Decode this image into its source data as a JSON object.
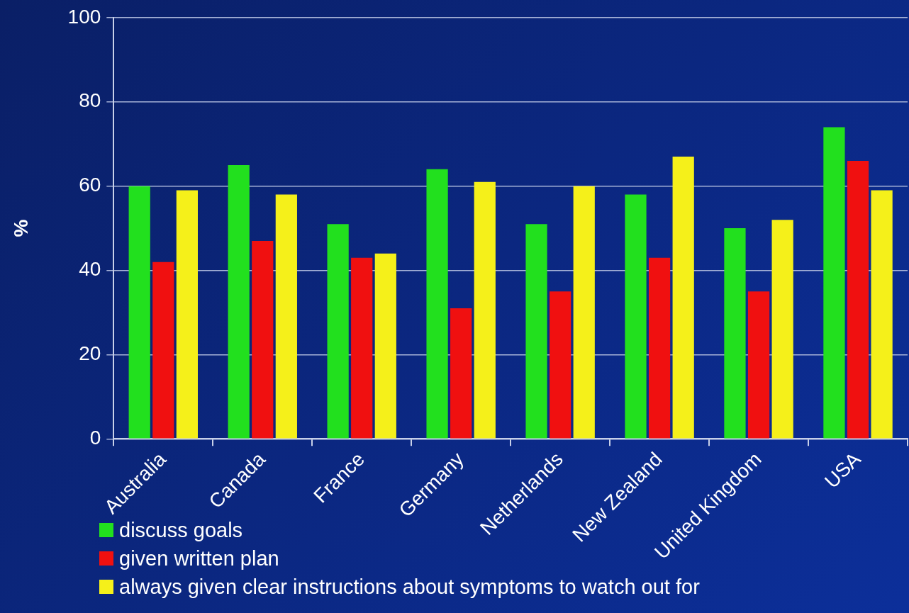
{
  "chart_data": {
    "type": "bar",
    "ylabel": "%",
    "categories": [
      "Australia",
      "Canada",
      "France",
      "Germany",
      "Netherlands",
      "New Zealand",
      "United Kingdom",
      "USA"
    ],
    "series": [
      {
        "name": "discuss goals",
        "color": "#22e01e",
        "values": [
          60,
          65,
          51,
          64,
          51,
          58,
          50,
          74
        ]
      },
      {
        "name": "given written plan",
        "color": "#f01010",
        "values": [
          42,
          47,
          43,
          31,
          35,
          43,
          35,
          66
        ]
      },
      {
        "name": "always given clear instructions about symptoms to watch out for",
        "color": "#f5f01a",
        "values": [
          59,
          58,
          44,
          61,
          60,
          67,
          52,
          59
        ]
      }
    ],
    "ylim": [
      0,
      100
    ],
    "yticks": [
      0,
      20,
      40,
      60,
      80,
      100
    ],
    "grid": "y",
    "legend": "bottom left"
  }
}
